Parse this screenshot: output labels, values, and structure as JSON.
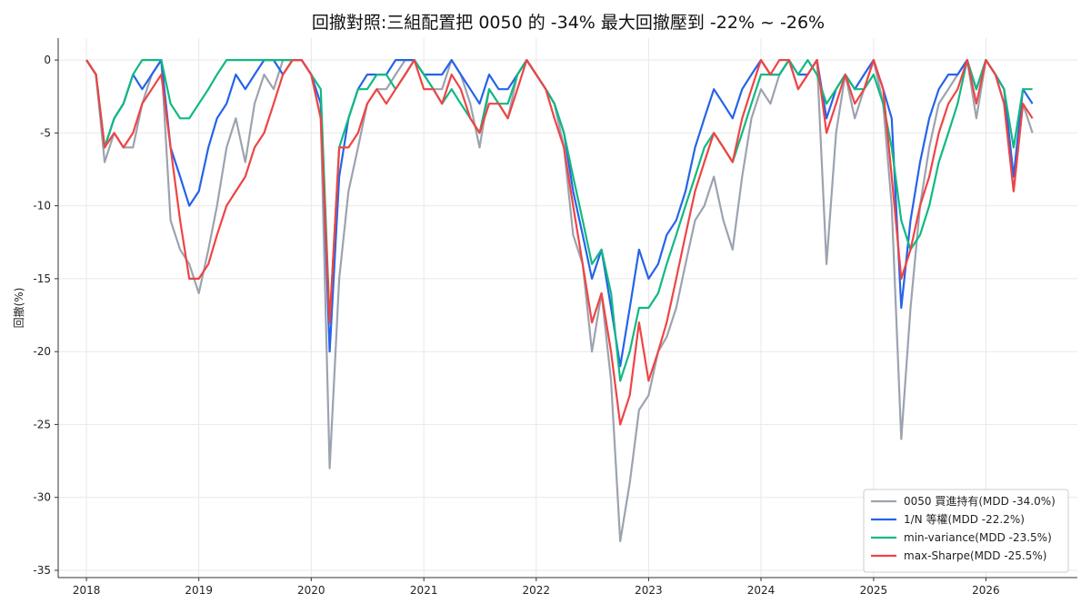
{
  "chart_data": {
    "type": "line",
    "title": "回撤對照:三組配置把 0050 的 -34% 最大回撤壓到 -22% ~ -26%",
    "xlabel": "",
    "ylabel": "回撤(%)",
    "ylim": [
      -35.5,
      1.5
    ],
    "xlim": [
      "2017-10-01",
      "2026-10-25"
    ],
    "yticks": [
      0,
      -5,
      -10,
      -15,
      -20,
      -25,
      -30,
      -35
    ],
    "xticks": [
      "2018",
      "2019",
      "2020",
      "2021",
      "2022",
      "2023",
      "2024",
      "2025",
      "2026"
    ],
    "grid": true,
    "legend": "bottom-right",
    "x": [
      "2018-01",
      "2018-02",
      "2018-03",
      "2018-04",
      "2018-05",
      "2018-06",
      "2018-07",
      "2018-08",
      "2018-09",
      "2018-10",
      "2018-11",
      "2018-12",
      "2019-01",
      "2019-02",
      "2019-03",
      "2019-04",
      "2019-05",
      "2019-06",
      "2019-07",
      "2019-08",
      "2019-09",
      "2019-10",
      "2019-11",
      "2019-12",
      "2020-01",
      "2020-02",
      "2020-03",
      "2020-04",
      "2020-05",
      "2020-06",
      "2020-07",
      "2020-08",
      "2020-09",
      "2020-10",
      "2020-11",
      "2020-12",
      "2021-01",
      "2021-02",
      "2021-03",
      "2021-04",
      "2021-05",
      "2021-06",
      "2021-07",
      "2021-08",
      "2021-09",
      "2021-10",
      "2021-11",
      "2021-12",
      "2022-01",
      "2022-02",
      "2022-03",
      "2022-04",
      "2022-05",
      "2022-06",
      "2022-07",
      "2022-08",
      "2022-09",
      "2022-10",
      "2022-11",
      "2022-12",
      "2023-01",
      "2023-02",
      "2023-03",
      "2023-04",
      "2023-05",
      "2023-06",
      "2023-07",
      "2023-08",
      "2023-09",
      "2023-10",
      "2023-11",
      "2023-12",
      "2024-01",
      "2024-02",
      "2024-03",
      "2024-04",
      "2024-05",
      "2024-06",
      "2024-07",
      "2024-08",
      "2024-09",
      "2024-10",
      "2024-11",
      "2024-12",
      "2025-01",
      "2025-02",
      "2025-03",
      "2025-04",
      "2025-05",
      "2025-06",
      "2025-07",
      "2025-08",
      "2025-09",
      "2025-10",
      "2025-11",
      "2025-12",
      "2026-01",
      "2026-02",
      "2026-03",
      "2026-04",
      "2026-05",
      "2026-06"
    ],
    "series": [
      {
        "name": "0050 買進持有(MDD -34.0%)",
        "color": "#9ca3af",
        "width": 2.2,
        "values": [
          0,
          -1,
          -7,
          -5,
          -6,
          -6,
          -3,
          -1,
          0,
          -11,
          -13,
          -14,
          -16,
          -13,
          -10,
          -6,
          -4,
          -7,
          -3,
          -1,
          -2,
          0,
          0,
          0,
          -1,
          -4,
          -28,
          -15,
          -9,
          -6,
          -3,
          -2,
          -2,
          -1,
          0,
          0,
          -1,
          -2,
          -2,
          0,
          -1,
          -3,
          -6,
          -2,
          -3,
          -4,
          -1,
          0,
          -1,
          -2,
          -3,
          -6,
          -12,
          -14,
          -20,
          -16,
          -22,
          -33,
          -29,
          -24,
          -23,
          -20,
          -19,
          -17,
          -14,
          -11,
          -10,
          -8,
          -11,
          -13,
          -8,
          -4,
          -2,
          -3,
          -1,
          0,
          -2,
          -1,
          0,
          -14,
          -5,
          -1,
          -4,
          -2,
          0,
          -3,
          -10,
          -26,
          -17,
          -10,
          -6,
          -3,
          -2,
          -1,
          0,
          -4,
          0,
          -1,
          -3,
          -9,
          -3,
          -5
        ]
      },
      {
        "name": "1/N 等權(MDD -22.2%)",
        "color": "#2563eb",
        "width": 2.2,
        "values": [
          0,
          -1,
          -6,
          -4,
          -3,
          -1,
          -2,
          -1,
          0,
          -6,
          -8,
          -10,
          -9,
          -6,
          -4,
          -3,
          -1,
          -2,
          -1,
          0,
          0,
          -1,
          0,
          0,
          -1,
          -3,
          -20,
          -8,
          -4,
          -2,
          -1,
          -1,
          -1,
          0,
          0,
          0,
          -1,
          -1,
          -1,
          0,
          -1,
          -2,
          -3,
          -1,
          -2,
          -2,
          -1,
          0,
          -1,
          -2,
          -3,
          -5,
          -9,
          -12,
          -15,
          -13,
          -17,
          -21,
          -17,
          -13,
          -15,
          -14,
          -12,
          -11,
          -9,
          -6,
          -4,
          -2,
          -3,
          -4,
          -2,
          -1,
          0,
          -1,
          -1,
          0,
          -1,
          -1,
          0,
          -4,
          -2,
          -1,
          -2,
          -1,
          0,
          -2,
          -4,
          -17,
          -11,
          -7,
          -4,
          -2,
          -1,
          -1,
          0,
          -2,
          0,
          -1,
          -2,
          -8,
          -2,
          -3
        ]
      },
      {
        "name": "min-variance(MDD -23.5%)",
        "color": "#10b981",
        "width": 2.2,
        "values": [
          0,
          -1,
          -6,
          -4,
          -3,
          -1,
          0,
          0,
          0,
          -3,
          -4,
          -4,
          -3,
          -2,
          -1,
          0,
          0,
          0,
          0,
          0,
          0,
          0,
          0,
          0,
          -1,
          -2,
          -18,
          -6,
          -4,
          -2,
          -2,
          -1,
          -1,
          -2,
          -1,
          0,
          -1,
          -2,
          -3,
          -2,
          -3,
          -4,
          -5,
          -2,
          -3,
          -3,
          -1,
          0,
          -1,
          -2,
          -3,
          -5,
          -8,
          -11,
          -14,
          -13,
          -16,
          -22,
          -20,
          -17,
          -17,
          -16,
          -14,
          -12,
          -10,
          -8,
          -6,
          -5,
          -6,
          -7,
          -5,
          -3,
          -1,
          -1,
          -1,
          0,
          -1,
          0,
          -1,
          -3,
          -2,
          -1,
          -2,
          -2,
          -1,
          -3,
          -6,
          -11,
          -13,
          -12,
          -10,
          -7,
          -5,
          -3,
          0,
          -2,
          0,
          -1,
          -2,
          -6,
          -2,
          -2
        ]
      },
      {
        "name": "max-Sharpe(MDD -25.5%)",
        "color": "#ef4444",
        "width": 2.2,
        "values": [
          0,
          -1,
          -6,
          -5,
          -6,
          -5,
          -3,
          -2,
          -1,
          -6,
          -11,
          -15,
          -15,
          -14,
          -12,
          -10,
          -9,
          -8,
          -6,
          -5,
          -3,
          -1,
          0,
          0,
          -1,
          -4,
          -18,
          -6,
          -6,
          -5,
          -3,
          -2,
          -3,
          -2,
          -1,
          0,
          -2,
          -2,
          -3,
          -1,
          -2,
          -4,
          -5,
          -3,
          -3,
          -4,
          -2,
          0,
          -1,
          -2,
          -4,
          -6,
          -10,
          -14,
          -18,
          -16,
          -20,
          -25,
          -23,
          -18,
          -22,
          -20,
          -18,
          -15,
          -12,
          -9,
          -7,
          -5,
          -6,
          -7,
          -4,
          -2,
          0,
          -1,
          0,
          0,
          -2,
          -1,
          0,
          -5,
          -3,
          -1,
          -3,
          -2,
          0,
          -2,
          -8,
          -15,
          -13,
          -10,
          -8,
          -5,
          -3,
          -2,
          0,
          -3,
          0,
          -1,
          -3,
          -9,
          -3,
          -4
        ]
      }
    ]
  }
}
